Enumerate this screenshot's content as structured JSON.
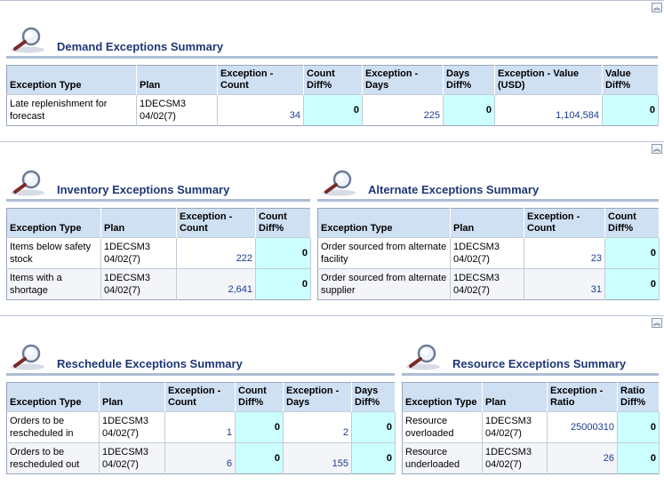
{
  "demand": {
    "title": "Demand Exceptions Summary",
    "headers": [
      "Exception Type",
      "Plan",
      "Exception - Count",
      "Count Diff%",
      "Exception - Days",
      "Days Diff%",
      "Exception - Value (USD)",
      "Value Diff%"
    ],
    "rows": [
      {
        "type": "Late replenishment for forecast",
        "plan": "1DECSM3 04/02(7)",
        "count": "34",
        "count_diff": "0",
        "days": "225",
        "days_diff": "0",
        "value": "1,104,584",
        "value_diff": "0"
      }
    ]
  },
  "inventory": {
    "title": "Inventory Exceptions Summary",
    "headers": [
      "Exception Type",
      "Plan",
      "Exception - Count",
      "Count Diff%"
    ],
    "rows": [
      {
        "type": "Items below safety stock",
        "plan": "1DECSM3 04/02(7)",
        "count": "222",
        "count_diff": "0"
      },
      {
        "type": "Items with a shortage",
        "plan": "1DECSM3 04/02(7)",
        "count": "2,641",
        "count_diff": "0"
      }
    ]
  },
  "alternate": {
    "title": "Alternate Exceptions Summary",
    "headers": [
      "Exception Type",
      "Plan",
      "Exception - Count",
      "Count Diff%"
    ],
    "rows": [
      {
        "type": "Order sourced from alternate facility",
        "plan": "1DECSM3 04/02(7)",
        "count": "23",
        "count_diff": "0"
      },
      {
        "type": "Order sourced from alternate supplier",
        "plan": "1DECSM3 04/02(7)",
        "count": "31",
        "count_diff": "0"
      }
    ]
  },
  "reschedule": {
    "title": "Reschedule Exceptions Summary",
    "headers": [
      "Exception Type",
      "Plan",
      "Exception - Count",
      "Count Diff%",
      "Exception - Days",
      "Days Diff%"
    ],
    "rows": [
      {
        "type": "Orders to be rescheduled in",
        "plan": "1DECSM3 04/02(7)",
        "count": "1",
        "count_diff": "0",
        "days": "2",
        "days_diff": "0"
      },
      {
        "type": "Orders to be rescheduled out",
        "plan": "1DECSM3 04/02(7)",
        "count": "6",
        "count_diff": "0",
        "days": "155",
        "days_diff": "0"
      }
    ]
  },
  "resource": {
    "title": "Resource Exceptions Summary",
    "headers": [
      "Exception Type",
      "Plan",
      "Exception - Ratio",
      "Ratio Diff%"
    ],
    "rows": [
      {
        "type": "Resource overloaded",
        "plan": "1DECSM3 04/02(7)",
        "ratio": "25000310",
        "ratio_diff": "0"
      },
      {
        "type": "Resource underloaded",
        "plan": "1DECSM3 04/02(7)",
        "ratio": "26",
        "ratio_diff": "0"
      }
    ]
  },
  "icons": {
    "collapse": "collapse-up-icon",
    "section": "magnifier-icon"
  },
  "colors": {
    "header_bg": "#cfe0f3",
    "diff_bg": "#ccffff",
    "title": "#1e3775",
    "link_num": "#1b3b8f"
  }
}
